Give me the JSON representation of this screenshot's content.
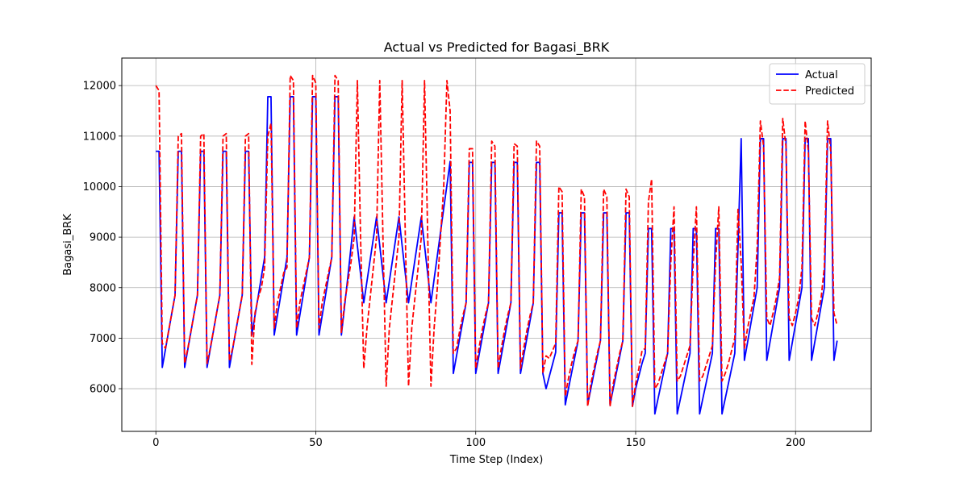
{
  "chart_data": {
    "type": "line",
    "title": "Actual vs Predicted for Bagasi_BRK",
    "x_label": "Time Step (Index)",
    "y_label": "Bagasi_BRK",
    "x": [
      0,
      1,
      2,
      3,
      4,
      5,
      6,
      7,
      8,
      9,
      10,
      11,
      12,
      13,
      14,
      15,
      16,
      17,
      18,
      19,
      20,
      21,
      22,
      23,
      24,
      25,
      26,
      27,
      28,
      29,
      30,
      31,
      32,
      33,
      34,
      35,
      36,
      37,
      38,
      39,
      40,
      41,
      42,
      43,
      44,
      45,
      46,
      47,
      48,
      49,
      50,
      51,
      52,
      53,
      54,
      55,
      56,
      57,
      58,
      59,
      60,
      61,
      62,
      63,
      64,
      65,
      66,
      67,
      68,
      69,
      70,
      71,
      72,
      73,
      74,
      75,
      76,
      77,
      78,
      79,
      80,
      81,
      82,
      83,
      84,
      85,
      86,
      87,
      88,
      89,
      90,
      91,
      92,
      93,
      94,
      95,
      96,
      97,
      98,
      99,
      100,
      101,
      102,
      103,
      104,
      105,
      106,
      107,
      108,
      109,
      110,
      111,
      112,
      113,
      114,
      115,
      116,
      117,
      118,
      119,
      120,
      121,
      122,
      123,
      124,
      125,
      126,
      127,
      128,
      129,
      130,
      131,
      132,
      133,
      134,
      135,
      136,
      137,
      138,
      139,
      140,
      141,
      142,
      143,
      144,
      145,
      146,
      147,
      148,
      149,
      150,
      151,
      152,
      153,
      154,
      155,
      156,
      157,
      158,
      159,
      160,
      161,
      162,
      163,
      164,
      165,
      166,
      167,
      168,
      169,
      170,
      171,
      172,
      173,
      174,
      175,
      176,
      177,
      178,
      179,
      180,
      181,
      182,
      183,
      184,
      185,
      186,
      187,
      188,
      189,
      190,
      191,
      192,
      193,
      194,
      195,
      196,
      197,
      198,
      199,
      200,
      201,
      202,
      203,
      204,
      205,
      206,
      207,
      208,
      209,
      210,
      211,
      212,
      213
    ],
    "series": [
      {
        "name": "Actual",
        "color": "#0000ff",
        "dash": false,
        "values": [
          10700,
          10700,
          6420,
          6780,
          7140,
          7500,
          7850,
          10700,
          10700,
          6420,
          6780,
          7140,
          7500,
          7850,
          10700,
          10700,
          6420,
          6780,
          7140,
          7500,
          7850,
          10700,
          10700,
          6420,
          6780,
          7140,
          7500,
          7850,
          10700,
          10700,
          7060,
          7450,
          7830,
          8220,
          8600,
          11780,
          11780,
          7060,
          7450,
          7830,
          8220,
          8600,
          11780,
          11780,
          7060,
          7450,
          7830,
          8220,
          8600,
          11780,
          11780,
          7060,
          7450,
          7830,
          8220,
          8600,
          11780,
          11780,
          7060,
          7630,
          8200,
          8800,
          9400,
          8830,
          8270,
          7700,
          8125,
          8550,
          8975,
          9400,
          8830,
          8270,
          7700,
          8125,
          8550,
          8975,
          9400,
          8830,
          8270,
          7700,
          8125,
          8550,
          8975,
          9400,
          8830,
          8270,
          7700,
          8170,
          8630,
          9100,
          9570,
          10030,
          10500,
          6300,
          6650,
          7000,
          7350,
          7700,
          10480,
          10480,
          6300,
          6650,
          7000,
          7350,
          7700,
          10480,
          10480,
          6300,
          6650,
          7000,
          7350,
          7700,
          10480,
          10480,
          6300,
          6650,
          7000,
          7350,
          7700,
          10480,
          10480,
          6300,
          6000,
          6240,
          6480,
          6720,
          9480,
          9480,
          5680,
          6000,
          6320,
          6630,
          6950,
          9480,
          9480,
          5680,
          6000,
          6320,
          6630,
          6950,
          9480,
          9480,
          5680,
          6000,
          6320,
          6630,
          6950,
          9480,
          9480,
          5650,
          6000,
          6250,
          6500,
          6700,
          9170,
          9170,
          5500,
          5800,
          6100,
          6400,
          6700,
          9170,
          9170,
          5500,
          5800,
          6100,
          6400,
          6700,
          9170,
          9170,
          5500,
          5800,
          6100,
          6400,
          6700,
          9170,
          9170,
          5500,
          5800,
          6100,
          6400,
          6700,
          8800,
          10950,
          6560,
          6920,
          7280,
          7640,
          8000,
          10950,
          10950,
          6560,
          6920,
          7280,
          7640,
          8000,
          10950,
          10950,
          6560,
          6920,
          7280,
          7640,
          8000,
          10950,
          10950,
          6560,
          6920,
          7280,
          7640,
          8000,
          10950,
          10950,
          6560,
          6950
        ]
      },
      {
        "name": "Predicted",
        "color": "#ff0000",
        "dash": true,
        "values": [
          12000,
          11900,
          6900,
          6800,
          7150,
          7500,
          7850,
          11000,
          11050,
          6500,
          6800,
          7150,
          7500,
          7850,
          11000,
          11050,
          6500,
          6800,
          7150,
          7500,
          7850,
          11000,
          11050,
          6550,
          6800,
          7150,
          7500,
          7850,
          11000,
          11050,
          6480,
          7500,
          7800,
          8000,
          8400,
          11000,
          11250,
          7200,
          7700,
          8000,
          8300,
          8400,
          12200,
          12100,
          7200,
          7700,
          8000,
          8300,
          8600,
          12200,
          12050,
          7200,
          7700,
          8000,
          8300,
          8600,
          12200,
          12100,
          7100,
          7700,
          8100,
          8500,
          9000,
          12100,
          9000,
          6400,
          7200,
          7800,
          8400,
          9000,
          12100,
          9000,
          6050,
          7200,
          7800,
          8400,
          9000,
          12100,
          9000,
          6050,
          7200,
          7800,
          8400,
          9000,
          12100,
          9000,
          6050,
          7200,
          8000,
          9000,
          10000,
          12100,
          11500,
          6700,
          6800,
          7150,
          7450,
          7700,
          10750,
          10750,
          6400,
          6800,
          7150,
          7450,
          7700,
          10900,
          10800,
          6400,
          6800,
          7150,
          7450,
          7700,
          10850,
          10800,
          6400,
          6800,
          7150,
          7450,
          7700,
          10900,
          10800,
          6300,
          6650,
          6600,
          6750,
          6900,
          10000,
          9900,
          5850,
          6200,
          6500,
          6750,
          6950,
          9950,
          9800,
          5650,
          6100,
          6400,
          6700,
          6950,
          9950,
          9800,
          5650,
          6100,
          6400,
          6700,
          6950,
          9950,
          9800,
          5650,
          6100,
          6400,
          6750,
          6800,
          9700,
          10150,
          6000,
          6100,
          6300,
          6500,
          6700,
          8500,
          9600,
          6150,
          6250,
          6450,
          6650,
          6850,
          8500,
          9600,
          6150,
          6250,
          6450,
          6650,
          6850,
          8500,
          9600,
          6150,
          6300,
          6500,
          6750,
          7000,
          9550,
          8500,
          6800,
          7200,
          7500,
          7800,
          8800,
          11300,
          10800,
          7400,
          7250,
          7500,
          7800,
          8200,
          11350,
          10800,
          7400,
          7250,
          7500,
          7800,
          8400,
          11300,
          10700,
          7400,
          7250,
          7500,
          7800,
          8400,
          11300,
          10700,
          7500,
          7250
        ]
      }
    ],
    "xlim": [
      -10.65,
      223.65
    ],
    "ylim": [
      5155,
      12545
    ],
    "xticks": [
      0,
      50,
      100,
      150,
      200
    ],
    "yticks": [
      6000,
      7000,
      8000,
      9000,
      10000,
      11000,
      12000
    ],
    "grid": true,
    "legend": "upper-right"
  }
}
